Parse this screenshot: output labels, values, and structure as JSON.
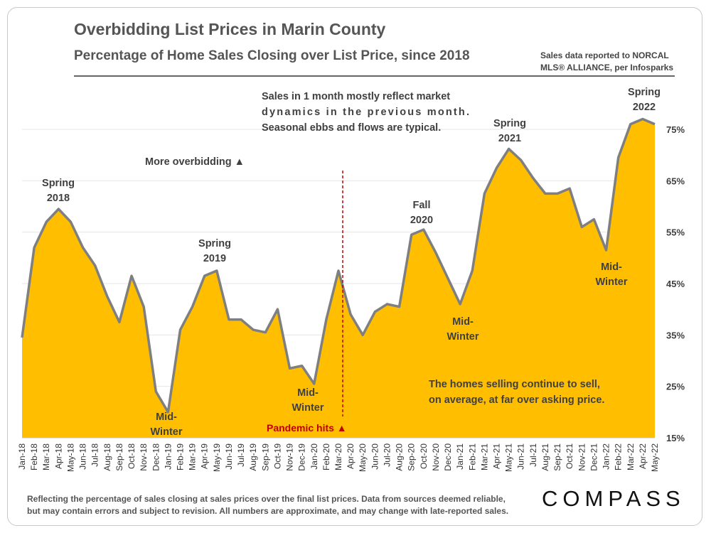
{
  "header": {
    "title": "Overbidding List Prices in Marin County",
    "subtitle": "Percentage of Home Sales Closing over List Price, since 2018",
    "source_line1": "Sales data reported to NORCAL",
    "source_line2": "MLS® ALLIANCE, per Infosparks"
  },
  "footer": {
    "note_line1": "Reflecting the percentage of sales closing at sales prices over the final list prices. Data from sources deemed reliable,",
    "note_line2": "but may contain errors and subject to revision. All numbers are approximate, and may change with late-reported sales.",
    "brand": "COMPASS"
  },
  "colors": {
    "fill": "#FFBF00",
    "line": "#7F7F7F",
    "pandemic": "#C00000",
    "text": "#404040"
  },
  "annotations": {
    "note1": "Sales in 1 month mostly reflect market",
    "note2": "dynamics in the previous month.",
    "note3": "Seasonal ebbs and flows are typical.",
    "more_overbidding": "More overbidding ▲",
    "spring2018_a": "Spring",
    "spring2018_b": "2018",
    "spring2019_a": "Spring",
    "spring2019_b": "2019",
    "fall2020_a": "Fall",
    "fall2020_b": "2020",
    "spring2021_a": "Spring",
    "spring2021_b": "2021",
    "spring2022_a": "Spring",
    "spring2022_b": "2022",
    "mw1_a": "Mid-",
    "mw1_b": "Winter",
    "mw2_a": "Mid-",
    "mw2_b": "Winter",
    "mw3_a": "Mid-",
    "mw3_b": "Winter",
    "mw4_a": "Mid-",
    "mw4_b": "Winter",
    "pandemic": "Pandemic hits ▲",
    "summary1": "The homes selling continue to sell,",
    "summary2": "on average, at far over asking price."
  },
  "chart_data": {
    "type": "area",
    "title": "Overbidding List Prices in Marin County",
    "subtitle": "Percentage of Home Sales Closing over List Price, since 2018",
    "ylabel": "",
    "ylim": [
      15,
      77
    ],
    "yticks": [
      "15%",
      "25%",
      "35%",
      "45%",
      "55%",
      "65%",
      "75%"
    ],
    "ytick_values": [
      15,
      25,
      35,
      45,
      55,
      65,
      75
    ],
    "categories": [
      "Jan-18",
      "Feb-18",
      "Mar-18",
      "Apr-18",
      "May-18",
      "Jun-18",
      "Jul-18",
      "Aug-18",
      "Sep-18",
      "Oct-18",
      "Nov-18",
      "Dec-18",
      "Jan-19",
      "Feb-19",
      "Mar-19",
      "Apr-19",
      "May-19",
      "Jun-19",
      "Jul-19",
      "Aug-19",
      "Sep-19",
      "Oct-19",
      "Nov-19",
      "Dec-19",
      "Jan-20",
      "Feb-20",
      "Mar-20",
      "Apr-20",
      "May-20",
      "Jun-20",
      "Jul-20",
      "Aug-20",
      "Sep-20",
      "Oct-20",
      "Nov-20",
      "Dec-20",
      "Jan-21",
      "Feb-21",
      "Mar-21",
      "Apr-21",
      "May-21",
      "Jun-21",
      "Jul-21",
      "Aug-21",
      "Sep-21",
      "Oct-21",
      "Nov-21",
      "Dec-21",
      "Jan-22",
      "Feb-22",
      "Mar-22",
      "Apr-22",
      "May-22"
    ],
    "series": [
      {
        "name": "Percentage of sales closing over list price",
        "values": [
          34.5,
          52,
          57,
          59.5,
          57,
          52,
          48.5,
          42.5,
          37.5,
          46.5,
          40.5,
          24,
          20,
          36,
          40.5,
          46.5,
          47.5,
          38,
          38,
          36,
          35.5,
          40,
          28.5,
          29,
          25.5,
          38,
          47.5,
          39,
          35,
          39.5,
          41,
          40.5,
          54.5,
          55.5,
          51,
          46,
          41,
          47.5,
          62.5,
          67.5,
          71.2,
          69,
          65.5,
          62.5,
          62.5,
          63.5,
          56,
          57.5,
          51.5,
          69.5,
          76,
          77,
          76
        ]
      }
    ],
    "marker": {
      "label": "Pandemic hits",
      "category": "Mar-20"
    }
  }
}
